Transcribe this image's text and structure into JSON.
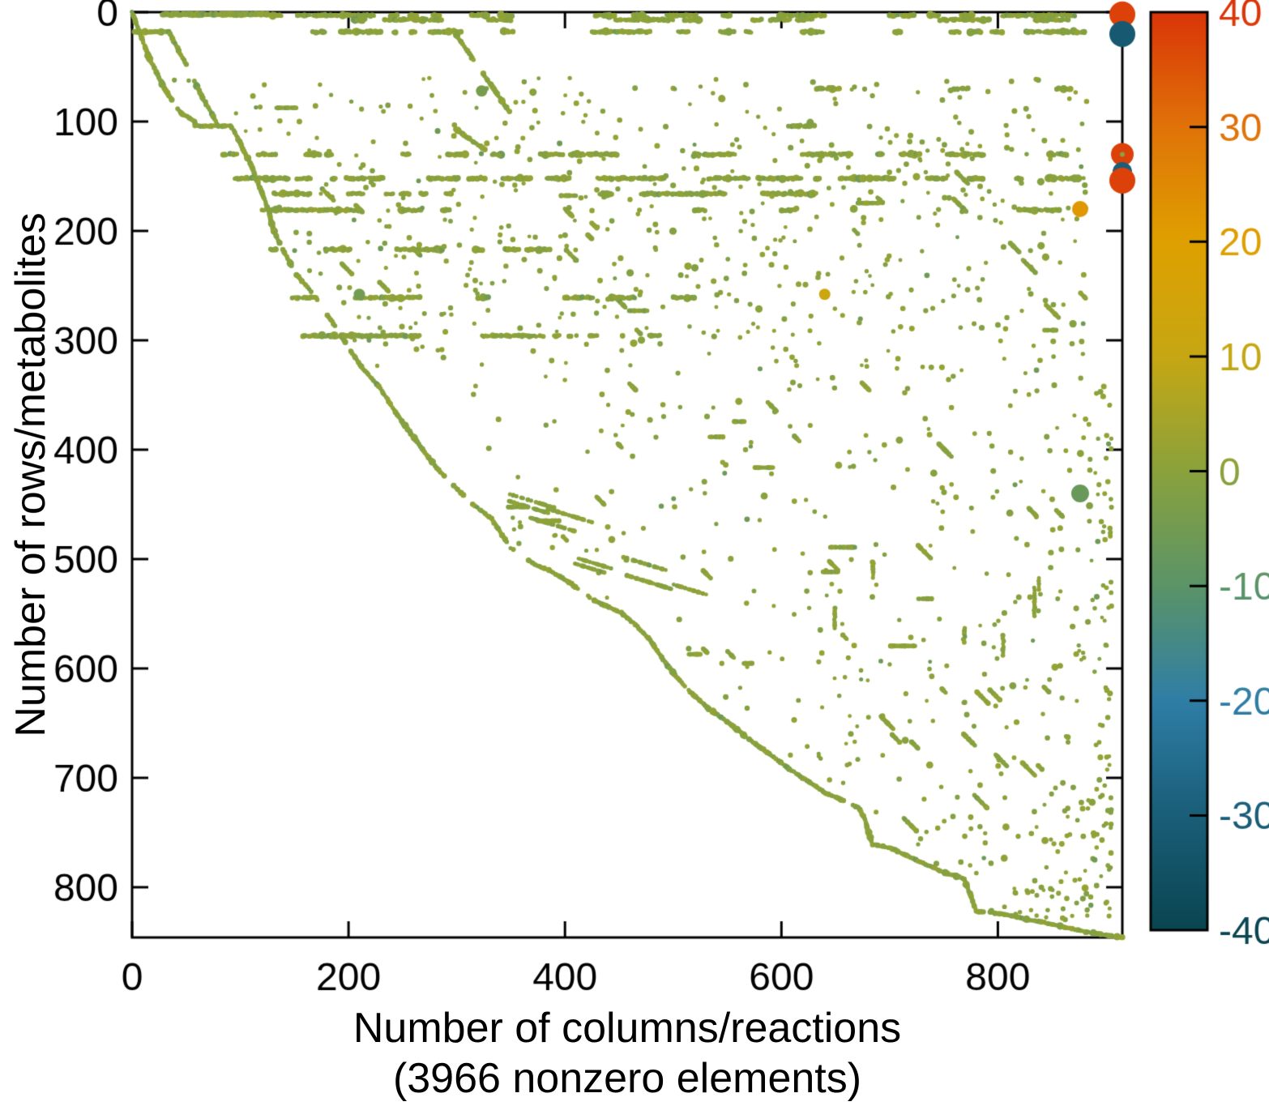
{
  "figure": {
    "xlabel_line1": "Number of columns/reactions",
    "xlabel_line2": "(3966 nonzero elements)",
    "ylabel": "Number of rows/metabolites"
  },
  "chart_data": {
    "type": "scatter",
    "description": "Sparse-matrix spy plot of a metabolic stoichiometric matrix; dot color encodes stoichiometric coefficient via the colorbar, dot size encodes magnitude. Staircase diagonal from top-left to bottom-right with scattered off-diagonal entries.",
    "title": "",
    "xlabel": "Number of columns/reactions",
    "xlabel_sub": "(3966 nonzero elements)",
    "ylabel": "Number of rows/metabolites",
    "nonzero_elements": 3966,
    "xlim": [
      0,
      915
    ],
    "ylim": [
      0,
      846
    ],
    "y_axis_inverted": true,
    "xticks": [
      0,
      200,
      400,
      600,
      800
    ],
    "yticks": [
      0,
      100,
      200,
      300,
      400,
      500,
      600,
      700,
      800
    ],
    "grid": false,
    "marker_default_color": "#93a636",
    "colorbar": {
      "min": -40,
      "max": 40,
      "ticks": [
        40,
        30,
        20,
        10,
        0,
        -10,
        -20,
        -30,
        -40
      ],
      "gradient_stops": [
        {
          "value": 40,
          "color": "#da3508"
        },
        {
          "value": 30,
          "color": "#e07309"
        },
        {
          "value": 20,
          "color": "#dfa000"
        },
        {
          "value": 10,
          "color": "#c6a713"
        },
        {
          "value": 0,
          "color": "#8aa23c"
        },
        {
          "value": -10,
          "color": "#5b9468"
        },
        {
          "value": -20,
          "color": "#2f7ea6"
        },
        {
          "value": -30,
          "color": "#1a5e78"
        },
        {
          "value": -40,
          "color": "#0a4550"
        }
      ]
    },
    "notable_points": [
      {
        "x": 915,
        "y": 2,
        "radius": 16,
        "value": 38
      },
      {
        "x": 915,
        "y": 20,
        "radius": 16,
        "value": -32
      },
      {
        "x": 915,
        "y": 130,
        "radius": 14,
        "value": 38
      },
      {
        "x": 915,
        "y": 146,
        "radius": 12,
        "value": -30
      },
      {
        "x": 915,
        "y": 154,
        "radius": 16,
        "value": 38
      },
      {
        "x": 876,
        "y": 180,
        "radius": 10,
        "value": 22
      },
      {
        "x": 640,
        "y": 258,
        "radius": 7,
        "value": 12
      },
      {
        "x": 876,
        "y": 440,
        "radius": 11,
        "value": -7
      },
      {
        "x": 210,
        "y": 258,
        "radius": 7,
        "value": -5
      },
      {
        "x": 323,
        "y": 72,
        "radius": 7,
        "value": -4
      },
      {
        "x": 915,
        "y": 130,
        "radius": 3,
        "value": 0
      }
    ],
    "pattern": {
      "seed": 13,
      "main_diagonal": [
        [
          0,
          0
        ],
        [
          15,
          40
        ],
        [
          30,
          70
        ],
        [
          45,
          92
        ],
        [
          58,
          100
        ],
        [
          58,
          104
        ],
        [
          91,
          104
        ],
        [
          95,
          110
        ],
        [
          110,
          140
        ],
        [
          125,
          178
        ],
        [
          131,
          200
        ],
        [
          136,
          211
        ],
        [
          152,
          240
        ],
        [
          170,
          261
        ],
        [
          186,
          285
        ],
        [
          202,
          310
        ],
        [
          215,
          328
        ],
        [
          228,
          342
        ],
        [
          245,
          368
        ],
        [
          262,
          391
        ],
        [
          280,
          415
        ],
        [
          297,
          433
        ],
        [
          315,
          450
        ],
        [
          332,
          463
        ],
        [
          342,
          478
        ],
        [
          350,
          490
        ],
        [
          372,
          505
        ],
        [
          385,
          510
        ],
        [
          402,
          520
        ],
        [
          427,
          538
        ],
        [
          452,
          549
        ],
        [
          465,
          560
        ],
        [
          477,
          572
        ],
        [
          495,
          598
        ],
        [
          514,
          620
        ],
        [
          533,
          637
        ],
        [
          552,
          650
        ],
        [
          570,
          665
        ],
        [
          589,
          678
        ],
        [
          607,
          692
        ],
        [
          626,
          704
        ],
        [
          639,
          713
        ],
        [
          655,
          720
        ],
        [
          671,
          727
        ],
        [
          677,
          737
        ],
        [
          681,
          752
        ],
        [
          684,
          761
        ],
        [
          701,
          764
        ],
        [
          713,
          770
        ],
        [
          726,
          776
        ],
        [
          740,
          782
        ],
        [
          751,
          787
        ],
        [
          762,
          790
        ],
        [
          769,
          793
        ],
        [
          775,
          808
        ],
        [
          780,
          822
        ],
        [
          793,
          823
        ],
        [
          806,
          825
        ],
        [
          820,
          828
        ],
        [
          836,
          831
        ],
        [
          851,
          834
        ],
        [
          864,
          837
        ],
        [
          881,
          841
        ],
        [
          895,
          843
        ],
        [
          915,
          846
        ]
      ],
      "branch_diagonal": [
        [
          2,
          18
        ],
        [
          34,
          18
        ],
        [
          50,
          48
        ],
        [
          65,
          78
        ],
        [
          80,
          104
        ]
      ],
      "secondary_diagonals": [
        [
          [
            297,
            17
          ],
          [
            350,
            93
          ]
        ],
        [
          [
            299,
            107
          ],
          [
            328,
            127
          ]
        ]
      ],
      "bands": [
        {
          "row": 2,
          "segments": [
            [
              28,
              127
            ]
          ],
          "density": 0.95
        },
        {
          "row": 3,
          "segments": [
            [
              130,
              352
            ],
            [
              428,
              640
            ],
            [
              700,
              875
            ]
          ],
          "density": 0.5
        },
        {
          "row": 7,
          "segments": [
            [
              150,
              350
            ],
            [
              430,
              630
            ],
            [
              720,
              868
            ]
          ],
          "density": 0.22
        },
        {
          "row": 18,
          "segments": [
            [
              160,
              352
            ],
            [
              425,
              640
            ],
            [
              705,
              880
            ]
          ],
          "density": 0.3
        },
        {
          "row": 70,
          "segments": [
            [
              185,
              228
            ],
            [
              500,
              875
            ]
          ],
          "density": 0.06
        },
        {
          "row": 104,
          "segments": [
            [
              282,
              700
            ]
          ],
          "density": 0.05
        },
        {
          "row": 130,
          "segments": [
            [
              84,
              460
            ],
            [
              520,
              806
            ],
            [
              830,
              872
            ]
          ],
          "density": 0.42
        },
        {
          "row": 152,
          "segments": [
            [
              95,
              500
            ],
            [
              516,
              880
            ]
          ],
          "density": 0.5
        },
        {
          "row": 166,
          "segments": [
            [
              110,
              360
            ],
            [
              432,
              700
            ]
          ],
          "density": 0.2
        },
        {
          "row": 181,
          "segments": [
            [
              120,
              420
            ],
            [
              520,
              730
            ],
            [
              800,
              862
            ]
          ],
          "density": 0.18
        },
        {
          "row": 217,
          "segments": [
            [
              128,
              420
            ]
          ],
          "density": 0.2
        },
        {
          "row": 261,
          "segments": [
            [
              148,
              360
            ],
            [
              400,
              655
            ]
          ],
          "density": 0.11
        },
        {
          "row": 296,
          "segments": [
            [
              158,
              430
            ],
            [
              478,
              560
            ]
          ],
          "density": 0.1
        }
      ],
      "scatter": {
        "upper": {
          "count": 560,
          "y_range": [
            60,
            330
          ]
        },
        "lower": {
          "count": 470,
          "y_range": [
            330,
            830
          ],
          "right_bias": 1.7
        }
      },
      "dash_features": {
        "diagonal_dashes": {
          "count": 48,
          "y_range": [
            140,
            750
          ]
        },
        "shallow_dashes": {
          "count": 9,
          "y_range": [
            425,
            535
          ]
        },
        "horizontal_dashes": {
          "count": 16,
          "y_range": [
            55,
            620
          ]
        },
        "vertical_streaks": {
          "count": 6,
          "y_range": [
            380,
            700
          ]
        }
      }
    }
  }
}
